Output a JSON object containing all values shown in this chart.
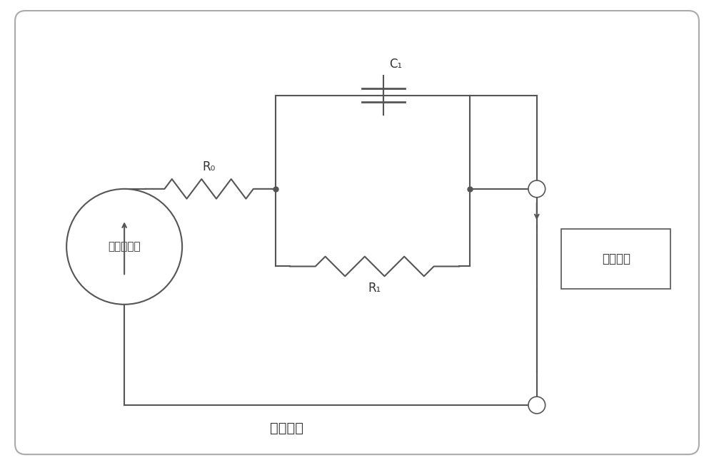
{
  "title": "",
  "background_color": "#ffffff",
  "border_color": "#aaaaaa",
  "line_color": "#555555",
  "text_color": "#333333",
  "circle_label": "幽门螺杆菌",
  "box_label": "杀菌曲线",
  "bottom_label": "克拉麴素",
  "R0_label": "R₀",
  "R1_label": "R₁",
  "C1_label": "C₁",
  "figsize": [
    10.0,
    6.66
  ],
  "dpi": 100
}
